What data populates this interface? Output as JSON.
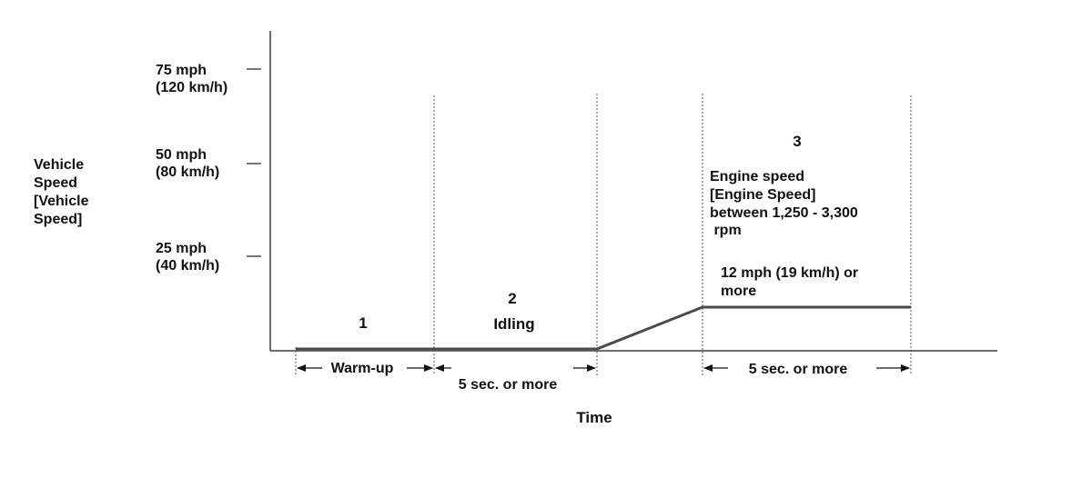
{
  "y_axis": {
    "title_lines": [
      "Vehicle",
      "Speed",
      "[Vehicle",
      "Speed]"
    ],
    "ticks": [
      {
        "mph": "75 mph",
        "kmh": "(120 km/h)"
      },
      {
        "mph": "50 mph",
        "kmh": "(80 km/h)"
      },
      {
        "mph": "25 mph",
        "kmh": "(40 km/h)"
      }
    ]
  },
  "x_axis": {
    "title": "Time"
  },
  "phases": {
    "p1": {
      "number": "1",
      "label": "Warm-up"
    },
    "p2": {
      "number": "2",
      "label": "Idling",
      "duration": "5 sec. or more"
    },
    "p3": {
      "number": "3",
      "engine_lines": [
        "Engine speed",
        "[Engine Speed]",
        "between 1,250 - 3,300",
        " rpm"
      ],
      "speed_lines": [
        "12 mph (19 km/h) or",
        "more"
      ],
      "duration": "5 sec. or more"
    }
  },
  "colors": {
    "axis": "#6e6e6e",
    "profile": "#4a4a4a",
    "text": "#111111"
  }
}
